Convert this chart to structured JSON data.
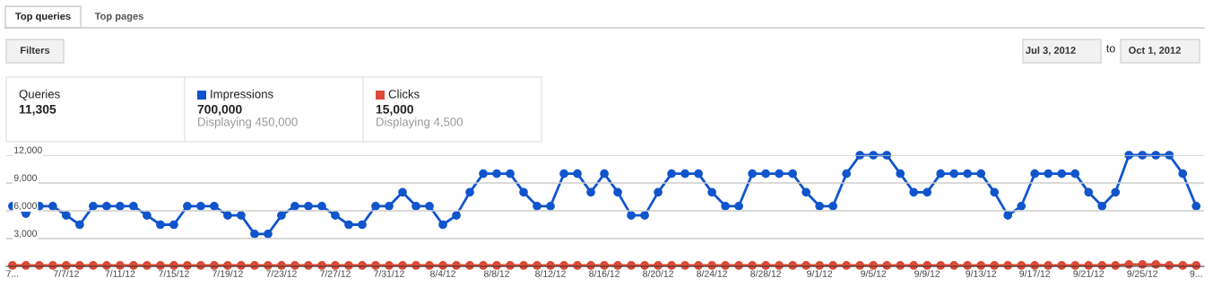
{
  "chart_data": {
    "type": "line",
    "x": [
      "2012-07-03",
      "2012-07-04",
      "2012-07-05",
      "2012-07-06",
      "2012-07-07",
      "2012-07-08",
      "2012-07-09",
      "2012-07-10",
      "2012-07-11",
      "2012-07-12",
      "2012-07-13",
      "2012-07-14",
      "2012-07-15",
      "2012-07-16",
      "2012-07-17",
      "2012-07-18",
      "2012-07-19",
      "2012-07-20",
      "2012-07-21",
      "2012-07-22",
      "2012-07-23",
      "2012-07-24",
      "2012-07-25",
      "2012-07-26",
      "2012-07-27",
      "2012-07-28",
      "2012-07-29",
      "2012-07-30",
      "2012-07-31",
      "2012-08-01",
      "2012-08-02",
      "2012-08-03",
      "2012-08-04",
      "2012-08-05",
      "2012-08-06",
      "2012-08-07",
      "2012-08-08",
      "2012-08-09",
      "2012-08-10",
      "2012-08-11",
      "2012-08-12",
      "2012-08-13",
      "2012-08-14",
      "2012-08-15",
      "2012-08-16",
      "2012-08-17",
      "2012-08-18",
      "2012-08-19",
      "2012-08-20",
      "2012-08-21",
      "2012-08-22",
      "2012-08-23",
      "2012-08-24",
      "2012-08-25",
      "2012-08-26",
      "2012-08-27",
      "2012-08-28",
      "2012-08-29",
      "2012-08-30",
      "2012-08-31",
      "2012-09-01",
      "2012-09-02",
      "2012-09-03",
      "2012-09-04",
      "2012-09-05",
      "2012-09-06",
      "2012-09-07",
      "2012-09-08",
      "2012-09-09",
      "2012-09-10",
      "2012-09-11",
      "2012-09-12",
      "2012-09-13",
      "2012-09-14",
      "2012-09-15",
      "2012-09-16",
      "2012-09-17",
      "2012-09-18",
      "2012-09-19",
      "2012-09-20",
      "2012-09-21",
      "2012-09-22",
      "2012-09-23",
      "2012-09-24",
      "2012-09-25",
      "2012-09-26",
      "2012-09-27",
      "2012-09-28",
      "2012-09-29"
    ],
    "series": [
      {
        "name": "Impressions",
        "color": "#1155cc",
        "values": [
          6500,
          5700,
          6500,
          6500,
          5500,
          4500,
          6500,
          6500,
          6500,
          6500,
          5500,
          4500,
          4500,
          6500,
          6500,
          6500,
          5500,
          5500,
          3500,
          3500,
          5500,
          6500,
          6500,
          6500,
          5500,
          4500,
          4500,
          6500,
          6500,
          8000,
          6500,
          6500,
          4500,
          5500,
          8000,
          10000,
          10000,
          10000,
          8000,
          6500,
          6500,
          10000,
          10000,
          8000,
          10000,
          8000,
          5500,
          5500,
          8000,
          10000,
          10000,
          10000,
          8000,
          6500,
          6500,
          10000,
          10000,
          10000,
          10000,
          8000,
          6500,
          6500,
          10000,
          12000,
          12000,
          12000,
          10000,
          8000,
          8000,
          10000,
          10000,
          10000,
          10000,
          8000,
          5500,
          6500,
          10000,
          10000,
          10000,
          10000,
          8000,
          6500,
          8000,
          12000,
          12000,
          12000,
          12000,
          10000,
          6500
        ]
      },
      {
        "name": "Clicks",
        "color": "#dc4a38",
        "values": [
          100,
          100,
          100,
          100,
          100,
          100,
          100,
          100,
          100,
          100,
          100,
          100,
          100,
          100,
          100,
          100,
          100,
          100,
          100,
          100,
          100,
          100,
          100,
          100,
          100,
          100,
          100,
          100,
          100,
          100,
          100,
          100,
          100,
          100,
          100,
          100,
          100,
          100,
          100,
          100,
          100,
          100,
          100,
          100,
          100,
          100,
          100,
          100,
          100,
          100,
          100,
          100,
          100,
          100,
          100,
          100,
          100,
          100,
          100,
          100,
          100,
          100,
          100,
          100,
          100,
          100,
          100,
          100,
          100,
          100,
          100,
          100,
          100,
          100,
          100,
          100,
          100,
          100,
          100,
          100,
          100,
          100,
          100,
          200,
          200,
          200,
          100,
          100,
          100
        ]
      }
    ],
    "xlim": [
      "2012-07-02T13:00",
      "2012-09-29T14:00"
    ],
    "xticks": [
      {
        "value": "2012-07-03",
        "label": "7..."
      },
      {
        "value": "2012-07-07",
        "label": "7/7/12"
      },
      {
        "value": "2012-07-11",
        "label": "7/11/12"
      },
      {
        "value": "2012-07-15",
        "label": "7/15/12"
      },
      {
        "value": "2012-07-19",
        "label": "7/19/12"
      },
      {
        "value": "2012-07-23",
        "label": "7/23/12"
      },
      {
        "value": "2012-07-27",
        "label": "7/27/12"
      },
      {
        "value": "2012-07-31",
        "label": "7/31/12"
      },
      {
        "value": "2012-08-04",
        "label": "8/4/12"
      },
      {
        "value": "2012-08-08",
        "label": "8/8/12"
      },
      {
        "value": "2012-08-12",
        "label": "8/12/12"
      },
      {
        "value": "2012-08-16",
        "label": "8/16/12"
      },
      {
        "value": "2012-08-20",
        "label": "8/20/12"
      },
      {
        "value": "2012-08-24",
        "label": "8/24/12"
      },
      {
        "value": "2012-08-28",
        "label": "8/28/12"
      },
      {
        "value": "2012-09-01",
        "label": "9/1/12"
      },
      {
        "value": "2012-09-05",
        "label": "9/5/12"
      },
      {
        "value": "2012-09-09",
        "label": "9/9/12"
      },
      {
        "value": "2012-09-13",
        "label": "9/13/12"
      },
      {
        "value": "2012-09-17",
        "label": "9/17/12"
      },
      {
        "value": "2012-09-21",
        "label": "9/21/12"
      },
      {
        "value": "2012-09-25",
        "label": "9/25/12"
      },
      {
        "value": "2012-09-29",
        "label": "9..."
      }
    ],
    "ylim": [
      0,
      12000
    ],
    "yticks": [
      {
        "value": 3000,
        "label": "3,000"
      },
      {
        "value": 6000,
        "label": "6,000"
      },
      {
        "value": 9000,
        "label": "9,000"
      },
      {
        "value": 12000,
        "label": "12,000"
      }
    ],
    "grid": "y",
    "legend": "top left",
    "marker": "circle",
    "line_style": "solid",
    "annotations": [
      "Top queries",
      "Top pages",
      "Filters",
      "Jul 3, 2012",
      "to",
      "Oct 1, 2012",
      "Queries",
      "11,305",
      "700,000",
      "Displaying 450,000",
      "15,000",
      "Displaying 4,500"
    ]
  }
}
